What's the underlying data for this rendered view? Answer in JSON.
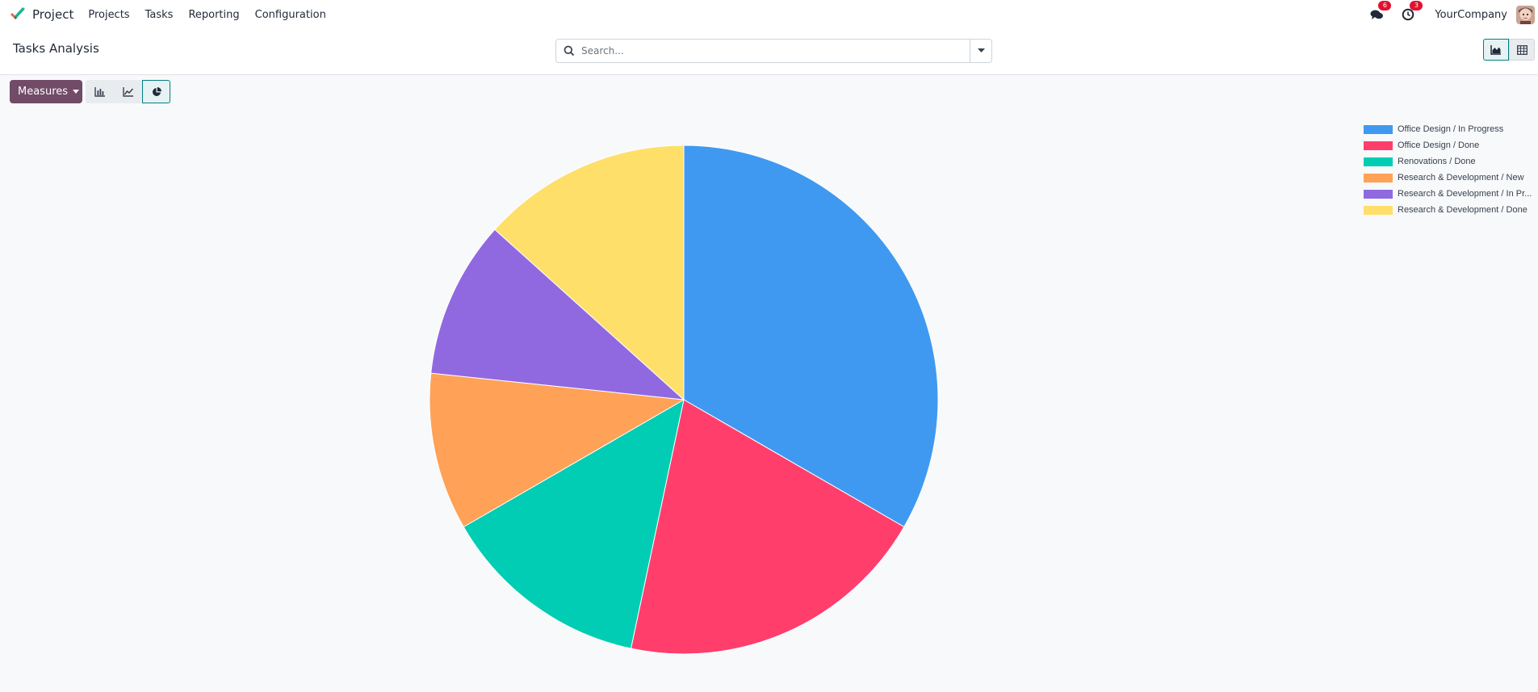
{
  "navbar": {
    "app_name": "Project",
    "menu": [
      {
        "label": "Projects"
      },
      {
        "label": "Tasks"
      },
      {
        "label": "Reporting"
      },
      {
        "label": "Configuration"
      }
    ],
    "messages_badge": "6",
    "activities_badge": "3",
    "company": "YourCompany"
  },
  "control_panel": {
    "title": "Tasks Analysis",
    "search_placeholder": "Search..."
  },
  "toolbar": {
    "measures_label": "Measures",
    "chart_types": [
      "bar",
      "line",
      "pie"
    ],
    "active_chart_type": "pie"
  },
  "views": [
    "graph",
    "pivot"
  ],
  "active_view": "graph",
  "chart_data": {
    "type": "pie",
    "categories": [
      "Office Design / In Progress",
      "Office Design / Done",
      "Renovations / Done",
      "Research & Development / New",
      "Research & Development / In Progress",
      "Research & Development / Done"
    ],
    "legend_labels": [
      "Office Design / In Progress",
      "Office Design / Done",
      "Renovations / Done",
      "Research & Development / New",
      "Research & Development / In Pr...",
      "Research & Development / Done"
    ],
    "values": [
      5,
      3,
      2,
      1.5,
      1.5,
      2
    ],
    "colors": [
      "#4099f0",
      "#ff3e6c",
      "#00cdb4",
      "#ffa157",
      "#9069e0",
      "#fedf6a"
    ],
    "legend_position": "top-right"
  }
}
